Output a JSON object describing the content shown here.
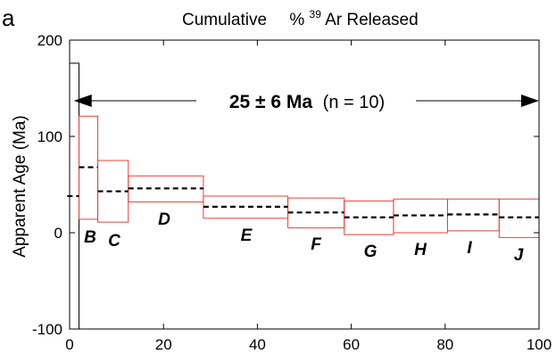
{
  "panel_label": "a",
  "chart_data": {
    "type": "bar",
    "title": {
      "prefix": "Cumulative",
      "percent": "%",
      "isotope_mass": "39",
      "suffix": "Ar Released"
    },
    "xlabel": "",
    "ylabel": "Apparent Age (Ma)",
    "xlim": [
      0,
      100
    ],
    "ylim": [
      -100,
      200
    ],
    "x_ticks": [
      0,
      20,
      40,
      60,
      80,
      100
    ],
    "x_tick_labels": [
      "0",
      "20",
      "40",
      "60",
      "80",
      "100"
    ],
    "y_ticks": [
      -100,
      0,
      100,
      200
    ],
    "y_tick_labels": [
      "-100",
      "0",
      "100",
      "200"
    ],
    "plateau": {
      "label_age": "25 ± 6 Ma",
      "label_n": "(n = 10)",
      "x_start": 0.9,
      "x_end": 100
    },
    "steps": [
      {
        "label": "",
        "x_start": 0,
        "x_end": 2.0,
        "age": null,
        "y_low": -100,
        "y_high": 176,
        "color": "#000000"
      },
      {
        "label": "",
        "x_start": -0.5,
        "x_end": 2.0,
        "age": 38,
        "y_low": null,
        "y_high": null,
        "color": "#000000"
      },
      {
        "label": "B",
        "x_start": 2.0,
        "x_end": 6.0,
        "age": 68,
        "y_low": 14,
        "y_high": 121,
        "color": "#e8403a"
      },
      {
        "label": "C",
        "x_start": 6.0,
        "x_end": 12.5,
        "age": 43,
        "y_low": 11,
        "y_high": 75,
        "color": "#e8403a"
      },
      {
        "label": "D",
        "x_start": 12.5,
        "x_end": 28.5,
        "age": 46,
        "y_low": 32,
        "y_high": 59,
        "color": "#e8403a"
      },
      {
        "label": "E",
        "x_start": 28.5,
        "x_end": 46.5,
        "age": 27,
        "y_low": 15,
        "y_high": 38,
        "color": "#e8403a"
      },
      {
        "label": "F",
        "x_start": 46.5,
        "x_end": 58.5,
        "age": 21,
        "y_low": 5,
        "y_high": 36,
        "color": "#e8403a"
      },
      {
        "label": "G",
        "x_start": 58.5,
        "x_end": 69.0,
        "age": 16,
        "y_low": -2,
        "y_high": 33,
        "color": "#e8403a"
      },
      {
        "label": "H",
        "x_start": 69.0,
        "x_end": 80.5,
        "age": 18,
        "y_low": 0,
        "y_high": 35,
        "color": "#e8403a"
      },
      {
        "label": "I",
        "x_start": 80.5,
        "x_end": 91.5,
        "age": 19,
        "y_low": 2,
        "y_high": 35,
        "color": "#e8403a"
      },
      {
        "label": "J",
        "x_start": 91.5,
        "x_end": 100,
        "age": 16,
        "y_low": -5,
        "y_high": 35,
        "color": "#e8403a"
      }
    ]
  }
}
